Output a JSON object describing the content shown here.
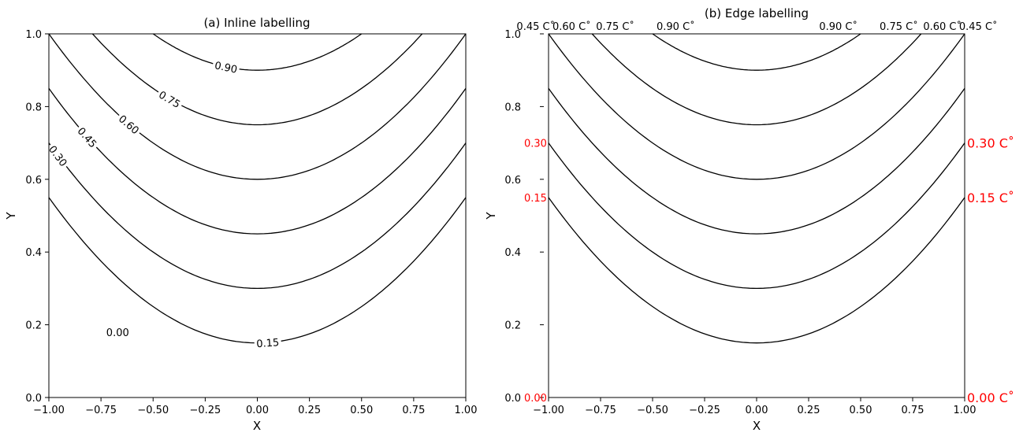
{
  "figure": {
    "panels": [
      {
        "title": "(a) Inline labelling",
        "xlabel": "X",
        "ylabel": "Y",
        "xticks": [
          "−1.00",
          "−0.75",
          "−0.50",
          "−0.25",
          "0.00",
          "0.25",
          "0.50",
          "0.75",
          "1.00"
        ],
        "yticks": [
          "0.0",
          "0.2",
          "0.4",
          "0.6",
          "0.8",
          "1.0"
        ]
      },
      {
        "title": "(b) Edge labelling",
        "xlabel": "X",
        "ylabel": "Y",
        "xticks": [
          "−1.00",
          "−0.75",
          "−0.50",
          "−0.25",
          "0.00",
          "0.25",
          "0.50",
          "0.75",
          "1.00"
        ],
        "yticks": [
          "0.0",
          "0.2",
          "0.4",
          "0.6",
          "0.8",
          "1.0"
        ],
        "top_labels_left": [
          "0.45 C˚",
          "0.60 C˚",
          "0.75 C˚",
          "0.90 C˚"
        ],
        "top_labels_right": [
          "0.90 C˚",
          "0.75 C˚",
          "0.60 C˚",
          "0.45 C˚"
        ],
        "left_labels": [
          "0.00",
          "0.15",
          "0.30"
        ],
        "right_labels": [
          "0.00 C˚",
          "0.15 C˚",
          "0.30 C˚"
        ]
      }
    ],
    "colors": {
      "contour": "#000000",
      "edge_label": "#ff0000"
    }
  },
  "chart_data": [
    {
      "type": "line",
      "subtype": "contour",
      "title": "(a) Inline labelling",
      "xlabel": "X",
      "ylabel": "Y",
      "xlim": [
        -1,
        1
      ],
      "ylim": [
        0,
        1
      ],
      "function": "z = y - 0.4 * x^2",
      "levels": [
        0.0,
        0.15,
        0.3,
        0.45,
        0.6,
        0.75,
        0.9
      ],
      "inline_labels": [
        "0.00",
        "0.15",
        "0.30",
        "0.45",
        "0.60",
        "0.75",
        "0.90"
      ]
    },
    {
      "type": "line",
      "subtype": "contour",
      "title": "(b) Edge labelling",
      "xlabel": "X",
      "ylabel": "Y",
      "xlim": [
        -1,
        1
      ],
      "ylim": [
        0,
        1
      ],
      "function": "z = y - 0.4 * x^2",
      "levels": [
        0.0,
        0.15,
        0.3,
        0.45,
        0.6,
        0.75,
        0.9
      ],
      "edge_labels": {
        "top": [
          0.45,
          0.6,
          0.75,
          0.9,
          0.9,
          0.75,
          0.6,
          0.45
        ],
        "left": [
          0.0,
          0.15,
          0.3
        ],
        "right": [
          0.0,
          0.15,
          0.3
        ]
      }
    }
  ]
}
